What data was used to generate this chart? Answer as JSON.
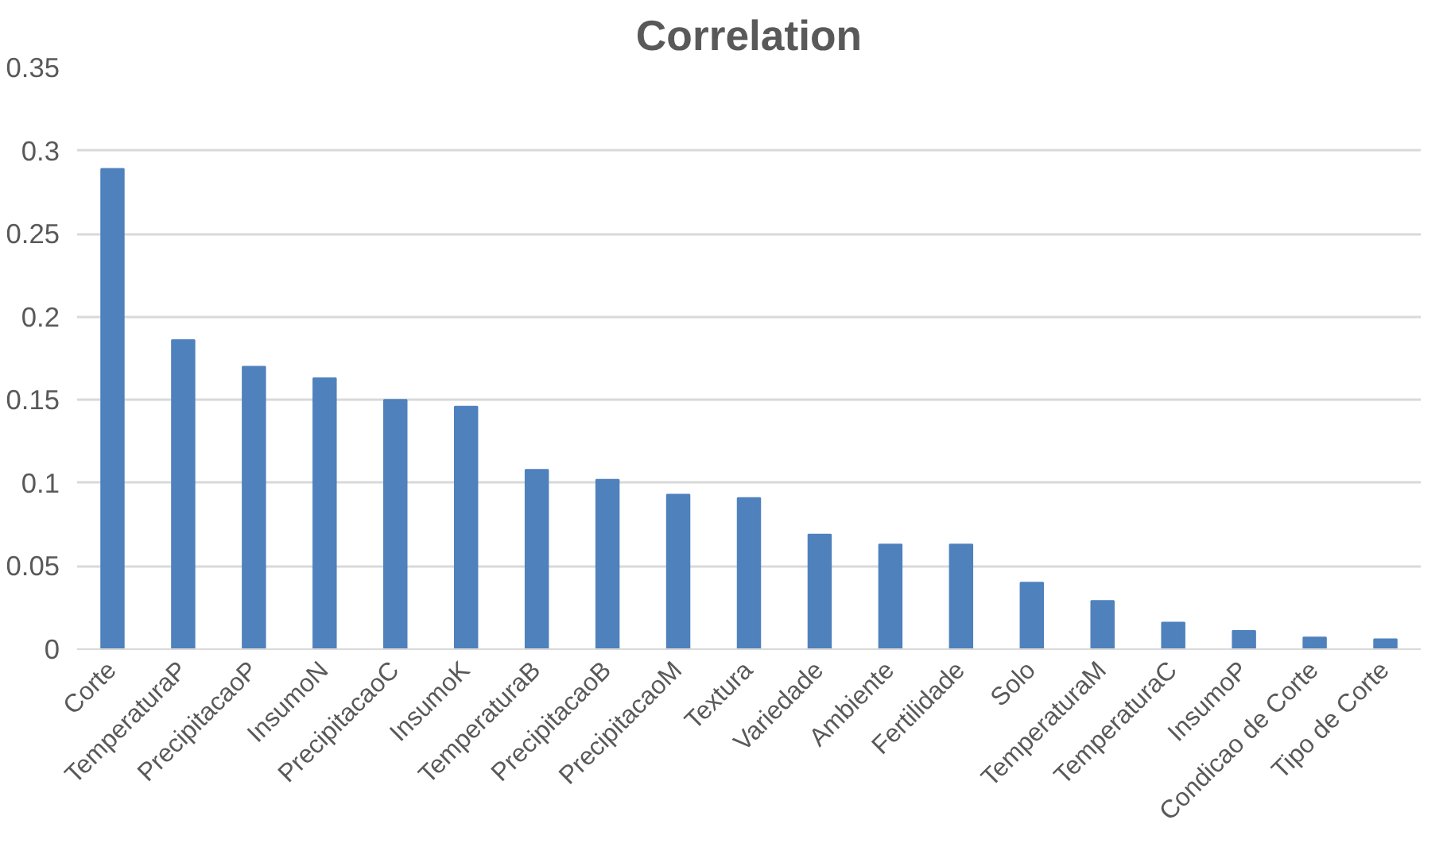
{
  "chart_data": {
    "type": "bar",
    "title": "Correlation",
    "categories": [
      "Corte",
      "TemperaturaP",
      "PrecipitacaoP",
      "InsumoN",
      "PrecipitacaoC",
      "InsumoK",
      "TemperaturaB",
      "PrecipitacaoB",
      "PrecipitacaoM",
      "Textura",
      "Variedade",
      "Ambiente",
      "Fertilidade",
      "Solo",
      "TemperaturaM",
      "TemperaturaC",
      "InsumoP",
      "Condicao de Corte",
      "Tipo de Corte"
    ],
    "values": [
      0.289,
      0.186,
      0.17,
      0.163,
      0.15,
      0.146,
      0.108,
      0.102,
      0.093,
      0.091,
      0.069,
      0.063,
      0.063,
      0.04,
      0.029,
      0.016,
      0.011,
      0.007,
      0.006
    ],
    "color": "#4f81bd",
    "ylim": [
      0,
      0.35
    ],
    "yticks": [
      0,
      0.05,
      0.1,
      0.15,
      0.2,
      0.25,
      0.3,
      0.35
    ],
    "grid": "y"
  }
}
